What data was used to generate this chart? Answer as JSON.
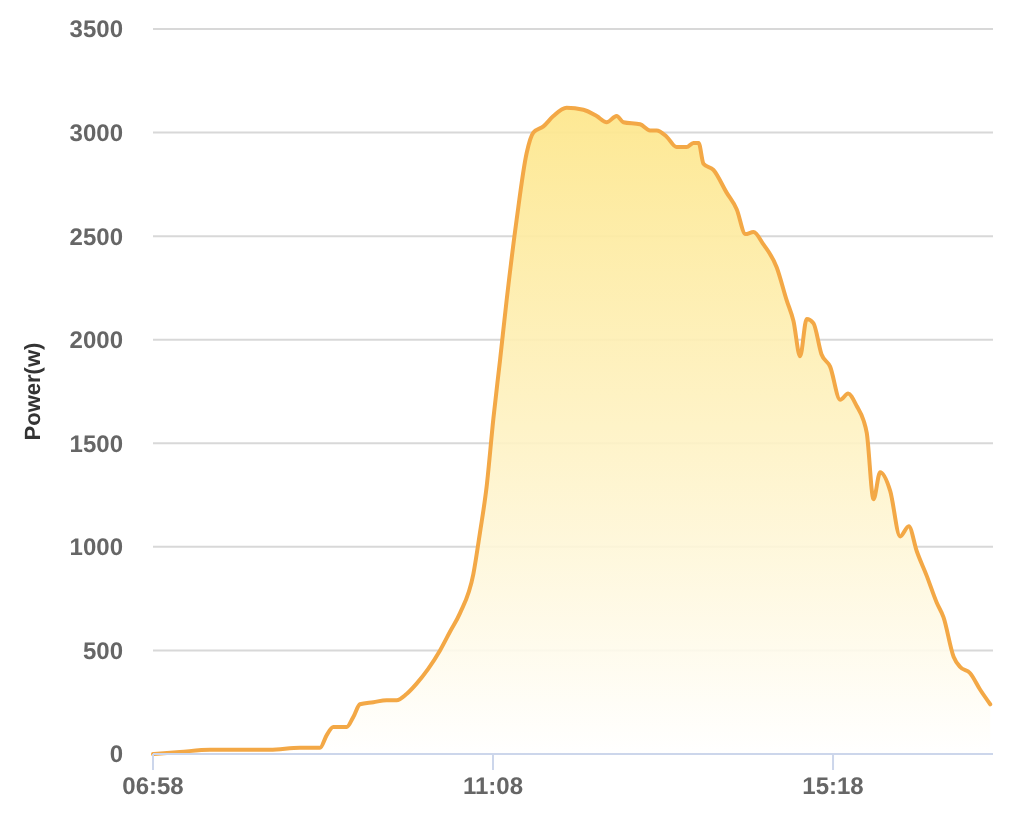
{
  "chart_data": {
    "type": "area",
    "ylabel": "Power(w)",
    "x": [
      6.967,
      7.298,
      7.665,
      8.033,
      8.4,
      8.768,
      9.013,
      9.094,
      9.177,
      9.339,
      9.423,
      9.503,
      9.668,
      9.829,
      9.952,
      10.074,
      10.197,
      10.337,
      10.484,
      10.606,
      10.729,
      10.893,
      10.974,
      11.055,
      11.138,
      11.219,
      11.3,
      11.423,
      11.545,
      11.628,
      11.751,
      11.873,
      12.035,
      12.241,
      12.403,
      12.526,
      12.648,
      12.731,
      12.935,
      13.057,
      13.138,
      13.261,
      13.383,
      13.506,
      13.589,
      13.653,
      13.712,
      13.834,
      13.996,
      14.119,
      14.227,
      14.325,
      14.447,
      14.609,
      14.732,
      14.815,
      14.896,
      14.977,
      15.06,
      15.158,
      15.264,
      15.387,
      15.485,
      15.59,
      15.674,
      15.713,
      15.796,
      15.877,
      16.0,
      16.122,
      16.228,
      16.325,
      16.448,
      16.571,
      16.654,
      16.777,
      16.858,
      16.98,
      17.103,
      17.226
    ],
    "values": [
      0,
      10,
      20,
      20,
      20,
      30,
      30,
      90,
      130,
      130,
      180,
      240,
      250,
      260,
      260,
      290,
      340,
      410,
      500,
      590,
      680,
      870,
      1070,
      1290,
      1620,
      1900,
      2190,
      2580,
      2900,
      3000,
      3030,
      3080,
      3120,
      3110,
      3080,
      3050,
      3080,
      3050,
      3040,
      3010,
      3010,
      2980,
      2930,
      2930,
      2950,
      2950,
      2850,
      2820,
      2710,
      2630,
      2510,
      2520,
      2460,
      2350,
      2190,
      2090,
      1920,
      2100,
      2080,
      1930,
      1870,
      1710,
      1740,
      1680,
      1610,
      1550,
      1230,
      1360,
      1270,
      1050,
      1100,
      980,
      860,
      730,
      660,
      470,
      420,
      390,
      310,
      240
    ],
    "color": "#f3a846",
    "xlim": [
      6.967,
      17.26
    ],
    "xticks": [
      {
        "value": 6.967,
        "label": "06:58"
      },
      {
        "value": 11.133,
        "label": "11:08"
      },
      {
        "value": 15.3,
        "label": "15:18"
      }
    ],
    "ylim": [
      0,
      3500
    ],
    "yticks": [
      0,
      500,
      1000,
      1500,
      2000,
      2500,
      3000,
      3500
    ],
    "grid": "y"
  }
}
